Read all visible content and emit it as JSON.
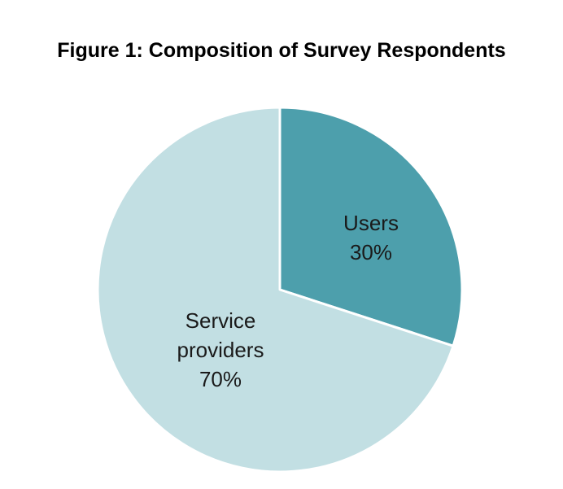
{
  "chart_data": {
    "type": "pie",
    "title": "Figure 1: Composition of Survey Respondents",
    "slices": [
      {
        "label_lines": [
          "Users"
        ],
        "value": 30,
        "value_label": "30%",
        "color": "#4d9fac"
      },
      {
        "label_lines": [
          "Service",
          "providers"
        ],
        "value": 70,
        "value_label": "70%",
        "color": "#c2dfe3"
      }
    ],
    "start_angle_deg": 0,
    "direction": "clockwise",
    "slice_border_color": "#ffffff",
    "legend": "none",
    "labels": "inside"
  }
}
